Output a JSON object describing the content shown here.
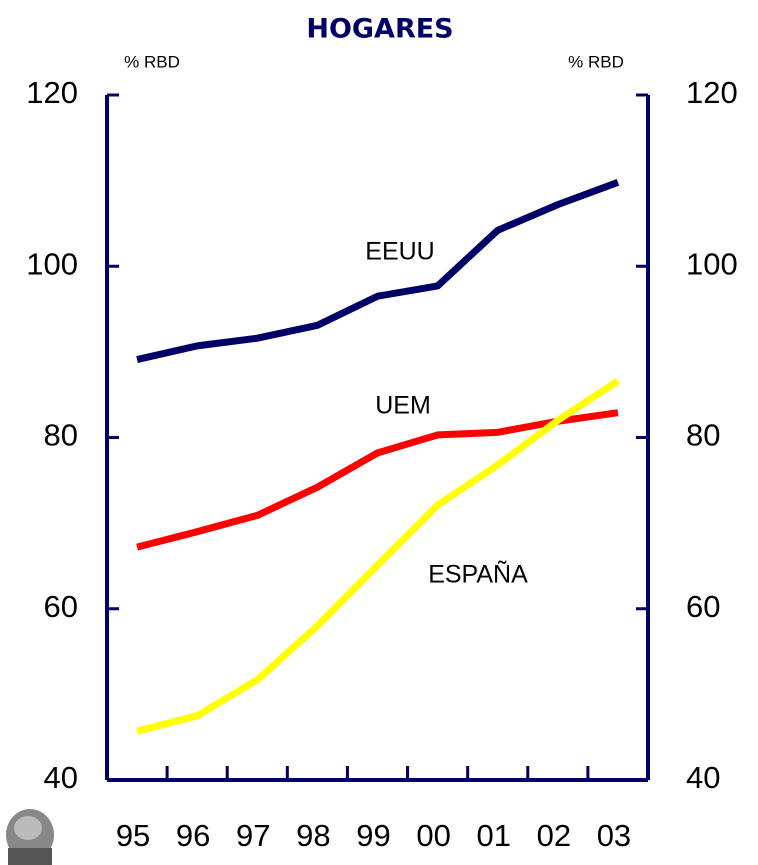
{
  "chart_data": {
    "type": "line",
    "title": "HOGARES",
    "y_label": "% RBD",
    "y2_label": "% RBD",
    "categories": [
      "95",
      "96",
      "97",
      "98",
      "99",
      "00",
      "01",
      "02",
      "03"
    ],
    "series": [
      {
        "name": "EEUU",
        "color": "#000066",
        "values": [
          89.1,
          90.7,
          91.6,
          93.1,
          96.5,
          97.7,
          104.2,
          107.2,
          109.8
        ]
      },
      {
        "name": "UEM",
        "color": "#ff0000",
        "values": [
          67.2,
          69.0,
          70.9,
          74.2,
          78.2,
          80.3,
          80.6,
          81.9,
          82.9
        ]
      },
      {
        "name": "ESPAÑA",
        "color": "#ffff00",
        "values": [
          45.7,
          47.5,
          51.7,
          58.0,
          65.1,
          72.1,
          76.8,
          82.0,
          86.6
        ]
      }
    ],
    "ylim": [
      40,
      120
    ],
    "yticks": [
      40,
      60,
      80,
      100,
      120
    ],
    "y2lim": [
      40,
      120
    ],
    "y2ticks": [
      40,
      60,
      80,
      100,
      120
    ],
    "axis_color": "#000066"
  }
}
